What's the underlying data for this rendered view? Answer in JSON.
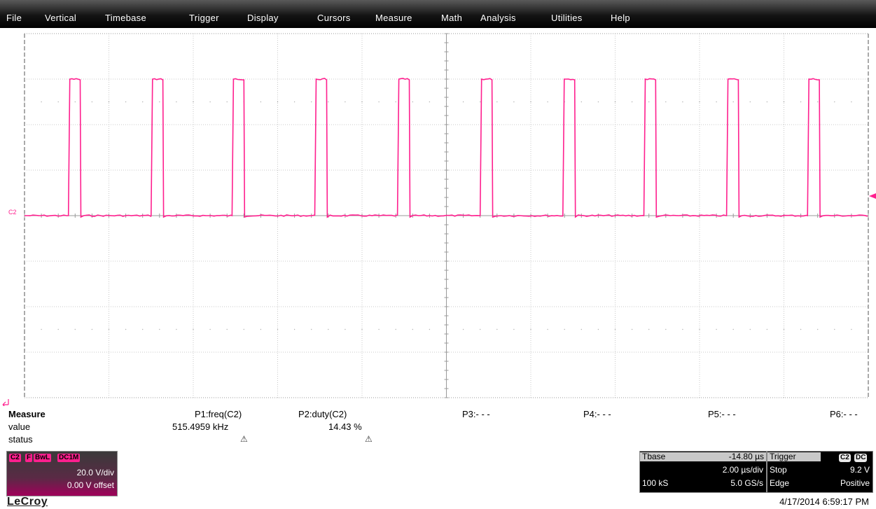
{
  "menu": [
    "File",
    "Vertical",
    "Timebase",
    "Trigger",
    "Display",
    "Cursors",
    "Measure",
    "Math",
    "Analysis",
    "Utilities",
    "Help"
  ],
  "trace": {
    "channel_marker": "C2",
    "color": "#ff1f8e",
    "low_level_div": 0.0,
    "high_level_div": 3.0,
    "pulse_starts_div": [
      0.52,
      1.5,
      2.46,
      3.44,
      4.42,
      5.4,
      6.38,
      7.34,
      8.32,
      9.28
    ],
    "pulse_width_div": 0.14
  },
  "measure": {
    "title": "Measure",
    "row_value": "value",
    "row_status": "status",
    "params": [
      {
        "label": "P1:freq(C2)",
        "value": "515.4959 kHz",
        "status_icon": "warning-icon"
      },
      {
        "label": "P2:duty(C2)",
        "value": "14.43 %",
        "status_icon": "warning-icon"
      },
      {
        "label": "P3:- - -"
      },
      {
        "label": "P4:- - -"
      },
      {
        "label": "P5:- - -"
      },
      {
        "label": "P6:- - -"
      }
    ]
  },
  "channel": {
    "name": "C2",
    "flags": [
      "F",
      "BwL",
      "DC1M"
    ],
    "vdiv": "20.0 V/div",
    "offset": "0.00 V offset"
  },
  "timebase": {
    "label": "Tbase",
    "delay": "-14.80 µs",
    "tdiv": "2.00 µs/div",
    "samples": "100 kS",
    "rate": "5.0 GS/s"
  },
  "trigger": {
    "label": "Trigger",
    "source": "C2",
    "coupling": "DC",
    "mode": "Stop",
    "level": "9.2 V",
    "type": "Edge",
    "slope": "Positive"
  },
  "brand": "LeCroy",
  "datetime": "4/17/2014 6:59:17 PM"
}
